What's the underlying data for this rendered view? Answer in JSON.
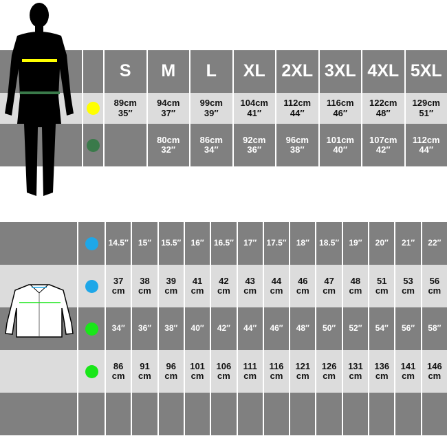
{
  "top_table": {
    "sizes": [
      "S",
      "M",
      "L",
      "XL",
      "2XL",
      "3XL",
      "4XL",
      "5XL"
    ],
    "rows": [
      {
        "marker_color": "#ffff00",
        "values": [
          [
            "89cm",
            "35″"
          ],
          [
            "94cm",
            "37″"
          ],
          [
            "99cm",
            "39″"
          ],
          [
            "104cm",
            "41″"
          ],
          [
            "112cm",
            "44″"
          ],
          [
            "116cm",
            "46″"
          ],
          [
            "122cm",
            "48″"
          ],
          [
            "129cm",
            "51″"
          ]
        ]
      },
      {
        "marker_color": "#3a7a4a",
        "values": [
          [
            "",
            ""
          ],
          [
            "80cm",
            "32″"
          ],
          [
            "86cm",
            "34″"
          ],
          [
            "92cm",
            "36″"
          ],
          [
            "96cm",
            "38″"
          ],
          [
            "101cm",
            "40″"
          ],
          [
            "107cm",
            "42″"
          ],
          [
            "112cm",
            "44″"
          ]
        ]
      }
    ]
  },
  "bottom_table": {
    "rows": [
      {
        "marker_color": "#1ea7e8",
        "style": "dark",
        "values": [
          "14.5″",
          "15″",
          "15.5″",
          "16″",
          "16.5″",
          "17″",
          "17.5″",
          "18″",
          "18.5″",
          "19″",
          "20″",
          "21″",
          "22″"
        ]
      },
      {
        "marker_color": "#1ea7e8",
        "style": "light",
        "values": [
          "37 cm",
          "38 cm",
          "39 cm",
          "41 cm",
          "42 cm",
          "43 cm",
          "44 cm",
          "46 cm",
          "47 cm",
          "48 cm",
          "51 cm",
          "53 cm",
          "56 cm"
        ]
      },
      {
        "marker_color": "#19e619",
        "style": "dark",
        "values": [
          "34″",
          "36″",
          "38″",
          "40″",
          "42″",
          "44″",
          "46″",
          "48″",
          "50″",
          "52″",
          "54″",
          "56″",
          "58″"
        ]
      },
      {
        "marker_color": "#19e619",
        "style": "light",
        "values": [
          "86 cm",
          "91 cm",
          "96 cm",
          "101 cm",
          "106 cm",
          "111 cm",
          "116 cm",
          "121 cm",
          "126 cm",
          "131 cm",
          "136 cm",
          "141 cm",
          "146 cm"
        ]
      },
      {
        "marker_color": "",
        "style": "dark",
        "values": [
          "",
          "",
          "",
          "",
          "",
          "",
          "",
          "",
          "",
          "",
          "",
          "",
          ""
        ]
      }
    ]
  },
  "colors": {
    "dark": "#808080",
    "light": "#dcdcdc",
    "chest_line": "#ffff00",
    "waist_line": "#3a7a4a",
    "collar_line": "#1ea7e8",
    "shirt_chest_line": "#19e619"
  }
}
